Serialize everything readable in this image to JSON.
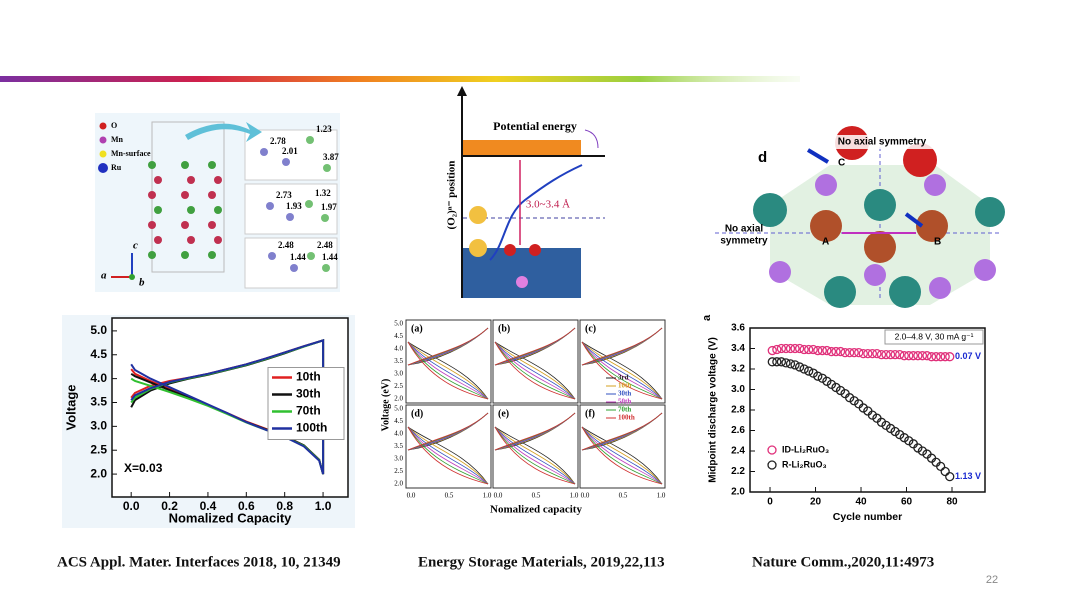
{
  "slide": {
    "page_number": "22"
  },
  "captions": [
    "ACS Appl. Mater. Interfaces 2018, 10, 21349",
    "Energy Storage Materials, 2019,22,113",
    "Nature Comm.,2020,11:4973"
  ],
  "figures": {
    "structure": {
      "legend": [
        "O",
        "Mn",
        "Mn-surface",
        "Ru"
      ],
      "labels": [
        "2.78",
        "2.01",
        "1.23",
        "3.87",
        "2.73",
        "1.93",
        "1.32",
        "1.97",
        "2.48",
        "1.44",
        "2.48",
        "1.44"
      ],
      "axes": [
        "c",
        "a",
        "b"
      ]
    },
    "energy": {
      "title": "Potential energy",
      "y_label": "(O₂)ⁿ⁻ position",
      "range": "3.0~3.4 Å"
    },
    "symmetry": {
      "panel": "d",
      "top": "No axial symmetry",
      "left": [
        "No axial",
        "symmetry"
      ],
      "atoms": [
        "A",
        "B",
        "C"
      ]
    },
    "multi": {
      "panels": [
        "(a)",
        "(b)",
        "(c)",
        "(d)",
        "(e)",
        "(f)"
      ],
      "legend": [
        "3rd",
        "10th",
        "30th",
        "50th",
        "70th",
        "100th"
      ],
      "legend_colors": [
        "#222222",
        "#d4a020",
        "#3050c0",
        "#c040c0",
        "#30a030",
        "#d03030"
      ],
      "x_label": "Nomalized capacity",
      "y_label": "Voltage (eV)",
      "xtick_labels": [
        "0.0",
        "0.5",
        "1.0"
      ],
      "ytick_labels": [
        "2.0",
        "2.5",
        "3.0",
        "3.5",
        "4.0",
        "4.5",
        "5.0"
      ]
    }
  },
  "chart_data": [
    {
      "type": "line",
      "x_label": "Nomalized Capacity",
      "y_label": "Voltage",
      "annotation": "X=0.03",
      "x": [
        0,
        0.02,
        0.1,
        0.2,
        0.3,
        0.4,
        0.5,
        0.6,
        0.7,
        0.8,
        0.9,
        1.0,
        1.0,
        0.98,
        0.9,
        0.8,
        0.7,
        0.6,
        0.5,
        0.4,
        0.3,
        0.2,
        0.1,
        0.02,
        0
      ],
      "series": [
        {
          "name": "10th",
          "color": "#e02020",
          "values": [
            3.6,
            3.7,
            3.85,
            3.95,
            4.02,
            4.1,
            4.2,
            4.3,
            4.42,
            4.55,
            4.68,
            4.8,
            2.0,
            2.3,
            2.6,
            2.8,
            2.95,
            3.1,
            3.28,
            3.45,
            3.62,
            3.78,
            3.95,
            4.1,
            4.2
          ]
        },
        {
          "name": "30th",
          "color": "#111111",
          "values": [
            3.4,
            3.55,
            3.75,
            3.9,
            4.0,
            4.08,
            4.18,
            4.28,
            4.4,
            4.53,
            4.67,
            4.8,
            2.0,
            2.3,
            2.6,
            2.79,
            2.94,
            3.09,
            3.27,
            3.44,
            3.6,
            3.76,
            3.92,
            4.05,
            4.1
          ]
        },
        {
          "name": "70th",
          "color": "#30c030",
          "values": [
            3.5,
            3.6,
            3.78,
            3.92,
            4.01,
            4.09,
            4.19,
            4.29,
            4.41,
            4.54,
            4.67,
            4.8,
            2.0,
            2.29,
            2.59,
            2.78,
            2.93,
            3.08,
            3.26,
            3.43,
            3.58,
            3.72,
            3.85,
            3.95,
            4.0
          ]
        },
        {
          "name": "100th",
          "color": "#2030a0",
          "values": [
            3.55,
            3.65,
            3.8,
            3.93,
            4.02,
            4.1,
            4.2,
            4.3,
            4.42,
            4.55,
            4.68,
            4.8,
            2.0,
            2.28,
            2.58,
            2.78,
            2.93,
            3.09,
            3.28,
            3.46,
            3.64,
            3.82,
            4.0,
            4.18,
            4.3
          ]
        }
      ],
      "xlim": [
        -0.1,
        1.13
      ],
      "ylim": [
        1.52,
        5.27
      ],
      "xticks": [
        {
          "value": 0,
          "label": "0.0"
        },
        0.2,
        0.4,
        0.6,
        0.8,
        {
          "value": 1,
          "label": "1.0"
        }
      ],
      "yticks": [
        {
          "value": 2,
          "label": "2.0"
        },
        2.5,
        {
          "value": 3,
          "label": "3.0"
        },
        3.5,
        {
          "value": 4,
          "label": "4.0"
        },
        4.5,
        {
          "value": 5,
          "label": "5.0"
        }
      ],
      "legend": "right"
    },
    {
      "type": "scatter",
      "panel": "a",
      "x_label": "Cycle number",
      "y_label": "Midpoint discharge voltage (V)",
      "condition": "2.0–4.8 V, 30 mA g⁻¹",
      "annotations": [
        "0.07 V",
        "1.13 V"
      ],
      "x": [
        1,
        3,
        5,
        7,
        9,
        11,
        13,
        15,
        17,
        19,
        21,
        23,
        25,
        27,
        29,
        31,
        33,
        35,
        37,
        39,
        41,
        43,
        45,
        47,
        49,
        51,
        53,
        55,
        57,
        59,
        61,
        63,
        65,
        67,
        69,
        71,
        73,
        75,
        77,
        79
      ],
      "series": [
        {
          "name": "ID-Li₂RuO₃",
          "color": "#e0307a",
          "values": [
            3.38,
            3.39,
            3.4,
            3.4,
            3.4,
            3.4,
            3.4,
            3.39,
            3.39,
            3.39,
            3.38,
            3.38,
            3.38,
            3.37,
            3.37,
            3.37,
            3.36,
            3.36,
            3.36,
            3.36,
            3.35,
            3.35,
            3.35,
            3.35,
            3.34,
            3.34,
            3.34,
            3.34,
            3.34,
            3.33,
            3.33,
            3.33,
            3.33,
            3.33,
            3.33,
            3.32,
            3.32,
            3.32,
            3.32,
            3.32
          ]
        },
        {
          "name": "R-Li₂RuO₃",
          "color": "#222222",
          "values": [
            3.27,
            3.27,
            3.27,
            3.26,
            3.25,
            3.24,
            3.22,
            3.2,
            3.18,
            3.16,
            3.13,
            3.11,
            3.08,
            3.05,
            3.02,
            2.99,
            2.96,
            2.92,
            2.89,
            2.86,
            2.82,
            2.79,
            2.75,
            2.72,
            2.68,
            2.65,
            2.62,
            2.59,
            2.56,
            2.53,
            2.5,
            2.47,
            2.43,
            2.4,
            2.37,
            2.33,
            2.29,
            2.25,
            2.2,
            2.15
          ]
        }
      ],
      "xlim": [
        -8.8,
        94.5
      ],
      "ylim": [
        2.0,
        3.6
      ],
      "xticks": [
        0,
        20,
        40,
        60,
        80
      ],
      "yticks": [
        {
          "value": 2,
          "label": "2.0"
        },
        2.2,
        2.4,
        2.6,
        2.8,
        {
          "value": 3,
          "label": "3.0"
        },
        3.2,
        3.4,
        3.6
      ],
      "legend": "lower left"
    }
  ]
}
